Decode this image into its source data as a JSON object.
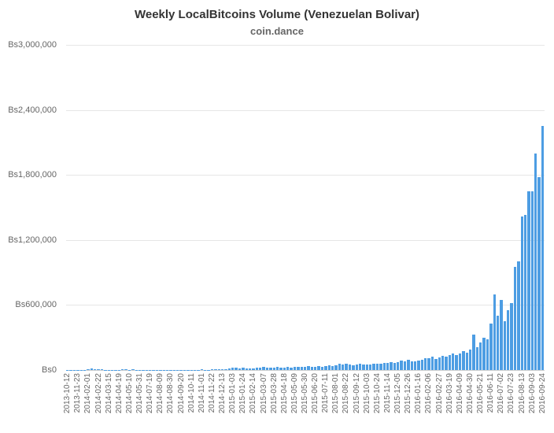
{
  "title": "Weekly LocalBitcoins Volume (Venezuelan Bolivar)",
  "subtitle": "coin.dance",
  "chart_data": {
    "type": "bar",
    "title": "Weekly LocalBitcoins Volume (Venezuelan Bolivar)",
    "subtitle": "coin.dance",
    "xlabel": "",
    "ylabel": "",
    "ylim": [
      0,
      3000000
    ],
    "grid": true,
    "legend": "none",
    "bar_color": "#4d9de3",
    "grid_color": "#e6e6e6",
    "axis_label_color": "#666666",
    "yticks": [
      0,
      600000,
      1200000,
      1800000,
      2400000,
      3000000
    ],
    "ytick_labels": [
      "Bs0",
      "Bs600,000",
      "Bs1,200,000",
      "Bs1,800,000",
      "Bs2,400,000",
      "Bs3,000,000"
    ],
    "label_every": 3,
    "x_labels": [
      "2013-10-12",
      "2013-11-23",
      "2014-02-01",
      "2014-02-22",
      "2014-03-15",
      "2014-04-19",
      "2014-05-10",
      "2014-05-31",
      "2014-07-19",
      "2014-08-09",
      "2014-08-30",
      "2014-09-20",
      "2014-10-11",
      "2014-11-01",
      "2014-11-22",
      "2014-12-13",
      "2015-01-03",
      "2015-01-24",
      "2015-02-14",
      "2015-03-07",
      "2015-03-28",
      "2015-04-18",
      "2015-05-09",
      "2015-05-30",
      "2015-06-20",
      "2015-07-11",
      "2015-08-01",
      "2015-08-22",
      "2015-09-12",
      "2015-10-03",
      "2015-10-24",
      "2015-11-14",
      "2015-12-05",
      "2015-12-26",
      "2016-01-16",
      "2016-02-06",
      "2016-02-27",
      "2016-03-19",
      "2016-04-09",
      "2016-04-30",
      "2016-05-21",
      "2016-06-11",
      "2016-07-02",
      "2016-07-23",
      "2016-08-13",
      "2016-09-03",
      "2016-09-24"
    ],
    "values": [
      1500,
      800,
      2000,
      1200,
      900,
      1500,
      9000,
      13000,
      6000,
      4000,
      10000,
      3500,
      2500,
      1800,
      2200,
      3000,
      11000,
      5000,
      2500,
      9000,
      3500,
      2000,
      1500,
      2500,
      2000,
      1500,
      2800,
      2200,
      3200,
      1800,
      2500,
      3000,
      2000,
      2800,
      3500,
      2500,
      3200,
      2400,
      3000,
      4000,
      3500,
      3000,
      3800,
      4500,
      4000,
      6000,
      9000,
      13000,
      20000,
      24000,
      17000,
      21000,
      18000,
      15000,
      17000,
      20000,
      23000,
      29000,
      25000,
      21000,
      23000,
      27000,
      22000,
      25000,
      28000,
      24000,
      27000,
      30000,
      26000,
      29000,
      33000,
      28000,
      31000,
      35000,
      30000,
      38000,
      43000,
      36000,
      41000,
      56000,
      48000,
      61000,
      52000,
      45000,
      50000,
      58000,
      53000,
      48000,
      52000,
      57000,
      61000,
      55000,
      63000,
      66000,
      71000,
      68000,
      76000,
      86000,
      80000,
      92000,
      83000,
      78000,
      88000,
      96000,
      106000,
      112000,
      126000,
      101000,
      116000,
      131000,
      121000,
      141000,
      156000,
      136000,
      151000,
      171000,
      161000,
      186000,
      330000,
      211000,
      251000,
      301000,
      281000,
      430000,
      700000,
      500000,
      650000,
      450000,
      550000,
      620000,
      950000,
      1000000,
      1420000,
      1430000,
      1650000,
      1650000,
      2000000,
      1780000,
      2250000
    ]
  }
}
